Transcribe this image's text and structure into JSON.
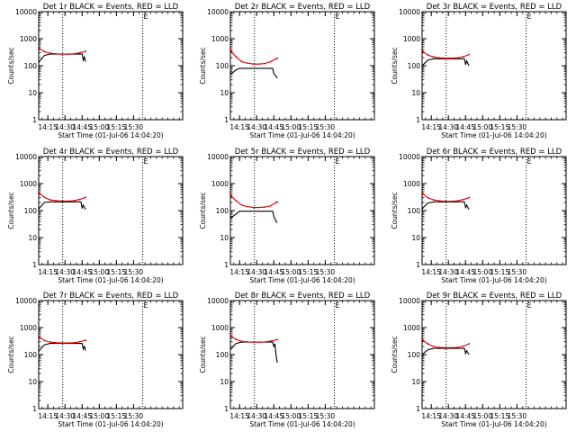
{
  "page_title": "",
  "chart_data": [
    {
      "type": "line",
      "title": "Det 1r BLACK = Events, RED = LLD",
      "xlabel": "Start Time (01-Jul-06 14:04:20)",
      "ylabel": "Counts/sec",
      "yscale": "log",
      "ylim": [
        1,
        10000
      ],
      "y_ticks": [
        "1",
        "10",
        "100",
        "1000",
        "10000"
      ],
      "x_ticks": [
        "14:15",
        "14:30",
        "14:45",
        "15:00",
        "15:15",
        "15:30"
      ],
      "xlim_minutes": [
        14.07,
        15.73
      ],
      "vlines_minutes": [
        14.28,
        15.38
      ],
      "marker_label": "E",
      "marker_minute": 15.38,
      "series": [
        {
          "color": "#000000",
          "x": [
            14.05,
            14.08,
            14.12,
            14.17,
            14.22,
            14.27,
            14.33,
            14.38,
            14.42,
            14.45,
            14.46,
            14.47,
            14.48
          ],
          "y": [
            130,
            150,
            240,
            270,
            270,
            270,
            270,
            270,
            270,
            270,
            160,
            210,
            140
          ]
        },
        {
          "color": "#dd0000",
          "x": [
            14.05,
            14.08,
            14.12,
            14.17,
            14.22,
            14.27,
            14.33,
            14.38,
            14.43,
            14.48
          ],
          "y": [
            480,
            420,
            330,
            290,
            275,
            270,
            270,
            275,
            300,
            340
          ]
        }
      ]
    },
    {
      "type": "line",
      "title": "Det 2r BLACK = Events, RED = LLD",
      "xlabel": "Start Time (01-Jul-06 14:04:20)",
      "ylabel": "Counts/sec",
      "yscale": "log",
      "ylim": [
        1,
        10000
      ],
      "y_ticks": [
        "1",
        "10",
        "100",
        "1000",
        "10000"
      ],
      "x_ticks": [
        "14:15",
        "14:30",
        "14:45",
        "15:00",
        "15:15",
        "15:30"
      ],
      "xlim_minutes": [
        14.07,
        15.73
      ],
      "vlines_minutes": [
        14.28,
        15.38
      ],
      "marker_label": "E",
      "marker_minute": 15.38,
      "series": [
        {
          "color": "#000000",
          "x": [
            14.05,
            14.08,
            14.12,
            14.15,
            14.2,
            14.25,
            14.3,
            14.35,
            14.4,
            14.44,
            14.45,
            14.46,
            14.47,
            14.48
          ],
          "y": [
            60,
            50,
            70,
            80,
            80,
            80,
            80,
            80,
            80,
            80,
            50,
            45,
            40,
            35
          ]
        },
        {
          "color": "#dd0000",
          "x": [
            14.05,
            14.08,
            14.12,
            14.17,
            14.22,
            14.27,
            14.32,
            14.37,
            14.42,
            14.47,
            14.48
          ],
          "y": [
            450,
            330,
            210,
            140,
            125,
            115,
            115,
            120,
            140,
            180,
            190
          ]
        }
      ]
    },
    {
      "type": "line",
      "title": "Det 3r BLACK = Events, RED = LLD",
      "xlabel": "Start Time (01-Jul-06 14:04:20)",
      "ylabel": "Counts/sec",
      "yscale": "log",
      "ylim": [
        1,
        10000
      ],
      "y_ticks": [
        "1",
        "10",
        "100",
        "1000",
        "10000"
      ],
      "x_ticks": [
        "14:15",
        "14:30",
        "14:45",
        "15:00",
        "15:15",
        "15:30"
      ],
      "xlim_minutes": [
        14.07,
        15.73
      ],
      "vlines_minutes": [
        14.28,
        15.38
      ],
      "marker_label": "E",
      "marker_minute": 15.38,
      "series": [
        {
          "color": "#000000",
          "x": [
            14.05,
            14.08,
            14.12,
            14.17,
            14.22,
            14.27,
            14.33,
            14.38,
            14.42,
            14.44,
            14.45,
            14.46,
            14.48
          ],
          "y": [
            100,
            110,
            160,
            180,
            180,
            180,
            180,
            180,
            180,
            180,
            110,
            150,
            100
          ]
        },
        {
          "color": "#dd0000",
          "x": [
            14.05,
            14.08,
            14.12,
            14.17,
            14.22,
            14.27,
            14.33,
            14.38,
            14.43,
            14.48
          ],
          "y": [
            380,
            330,
            250,
            210,
            195,
            190,
            190,
            195,
            215,
            260
          ]
        }
      ]
    },
    {
      "type": "line",
      "title": "Det 4r BLACK = Events, RED = LLD",
      "xlabel": "Start Time (01-Jul-06 14:04:20)",
      "ylabel": "Counts/sec",
      "yscale": "log",
      "ylim": [
        1,
        10000
      ],
      "y_ticks": [
        "1",
        "10",
        "100",
        "1000",
        "10000"
      ],
      "x_ticks": [
        "14:15",
        "14:30",
        "14:45",
        "15:00",
        "15:15",
        "15:30"
      ],
      "xlim_minutes": [
        14.07,
        15.73
      ],
      "vlines_minutes": [
        14.28,
        15.38
      ],
      "marker_label": "E",
      "marker_minute": 15.38,
      "series": [
        {
          "color": "#000000",
          "x": [
            14.05,
            14.08,
            14.12,
            14.17,
            14.22,
            14.27,
            14.33,
            14.38,
            14.42,
            14.44,
            14.45,
            14.46,
            14.48
          ],
          "y": [
            110,
            130,
            200,
            210,
            210,
            210,
            210,
            210,
            210,
            210,
            120,
            160,
            110
          ]
        },
        {
          "color": "#dd0000",
          "x": [
            14.05,
            14.08,
            14.12,
            14.17,
            14.22,
            14.27,
            14.33,
            14.38,
            14.43,
            14.48
          ],
          "y": [
            480,
            420,
            310,
            250,
            235,
            225,
            225,
            235,
            260,
            310
          ]
        }
      ]
    },
    {
      "type": "line",
      "title": "Det 5r BLACK = Events, RED = LLD",
      "xlabel": "Start Time (01-Jul-06 14:04:20)",
      "ylabel": "Counts/sec",
      "yscale": "log",
      "ylim": [
        1,
        10000
      ],
      "y_ticks": [
        "1",
        "10",
        "100",
        "1000",
        "10000"
      ],
      "x_ticks": [
        "14:15",
        "14:30",
        "14:45",
        "15:00",
        "15:15",
        "15:30"
      ],
      "xlim_minutes": [
        14.07,
        15.73
      ],
      "vlines_minutes": [
        14.28,
        15.38
      ],
      "marker_label": "E",
      "marker_minute": 15.38,
      "series": [
        {
          "color": "#000000",
          "x": [
            14.05,
            14.08,
            14.12,
            14.15,
            14.2,
            14.25,
            14.3,
            14.35,
            14.4,
            14.44,
            14.45,
            14.46,
            14.47,
            14.48
          ],
          "y": [
            65,
            55,
            75,
            95,
            95,
            95,
            95,
            95,
            95,
            95,
            60,
            50,
            40,
            35
          ]
        },
        {
          "color": "#dd0000",
          "x": [
            14.05,
            14.08,
            14.12,
            14.17,
            14.22,
            14.27,
            14.32,
            14.37,
            14.42,
            14.47,
            14.48
          ],
          "y": [
            440,
            340,
            230,
            160,
            140,
            130,
            130,
            135,
            150,
            200,
            210
          ]
        }
      ]
    },
    {
      "type": "line",
      "title": "Det 6r BLACK = Events, RED = LLD",
      "xlabel": "Start Time (01-Jul-06 14:04:20)",
      "ylabel": "Counts/sec",
      "yscale": "log",
      "ylim": [
        1,
        10000
      ],
      "y_ticks": [
        "1",
        "10",
        "100",
        "1000",
        "10000"
      ],
      "x_ticks": [
        "14:15",
        "14:30",
        "14:45",
        "15:00",
        "15:15",
        "15:30"
      ],
      "xlim_minutes": [
        14.07,
        15.73
      ],
      "vlines_minutes": [
        14.28,
        15.38
      ],
      "marker_label": "E",
      "marker_minute": 15.38,
      "series": [
        {
          "color": "#000000",
          "x": [
            14.05,
            14.08,
            14.12,
            14.17,
            14.22,
            14.27,
            14.33,
            14.38,
            14.42,
            14.44,
            14.45,
            14.46,
            14.48
          ],
          "y": [
            110,
            130,
            190,
            210,
            210,
            210,
            210,
            210,
            210,
            210,
            130,
            160,
            110
          ]
        },
        {
          "color": "#dd0000",
          "x": [
            14.05,
            14.08,
            14.12,
            14.17,
            14.22,
            14.27,
            14.33,
            14.38,
            14.43,
            14.48
          ],
          "y": [
            470,
            410,
            300,
            250,
            230,
            220,
            220,
            230,
            255,
            300
          ]
        }
      ]
    },
    {
      "type": "line",
      "title": "Det 7r BLACK = Events, RED = LLD",
      "xlabel": "Start Time (01-Jul-06 14:04:20)",
      "ylabel": "Counts/sec",
      "yscale": "log",
      "ylim": [
        1,
        10000
      ],
      "y_ticks": [
        "1",
        "10",
        "100",
        "1000",
        "10000"
      ],
      "x_ticks": [
        "14:15",
        "14:30",
        "14:45",
        "15:00",
        "15:15",
        "15:30"
      ],
      "xlim_minutes": [
        14.07,
        15.73
      ],
      "vlines_minutes": [
        14.28,
        15.38
      ],
      "marker_label": "E",
      "marker_minute": 15.38,
      "series": [
        {
          "color": "#000000",
          "x": [
            14.05,
            14.08,
            14.12,
            14.17,
            14.22,
            14.27,
            14.33,
            14.38,
            14.42,
            14.45,
            14.46,
            14.47,
            14.48
          ],
          "y": [
            130,
            150,
            230,
            260,
            260,
            260,
            260,
            260,
            260,
            260,
            160,
            200,
            140
          ]
        },
        {
          "color": "#dd0000",
          "x": [
            14.05,
            14.08,
            14.12,
            14.17,
            14.22,
            14.27,
            14.33,
            14.38,
            14.43,
            14.48
          ],
          "y": [
            500,
            430,
            330,
            290,
            275,
            270,
            270,
            275,
            300,
            340
          ]
        }
      ]
    },
    {
      "type": "line",
      "title": "Det 8r BLACK = Events, RED = LLD",
      "xlabel": "Start Time (01-Jul-06 14:04:20)",
      "ylabel": "Counts/sec",
      "yscale": "log",
      "ylim": [
        1,
        10000
      ],
      "y_ticks": [
        "1",
        "10",
        "100",
        "1000",
        "10000"
      ],
      "x_ticks": [
        "14:15",
        "14:30",
        "14:45",
        "15:00",
        "15:15",
        "15:30"
      ],
      "xlim_minutes": [
        14.07,
        15.73
      ],
      "vlines_minutes": [
        14.28,
        15.38
      ],
      "marker_label": "E",
      "marker_minute": 15.38,
      "series": [
        {
          "color": "#000000",
          "x": [
            14.05,
            14.08,
            14.12,
            14.17,
            14.22,
            14.27,
            14.33,
            14.38,
            14.42,
            14.44,
            14.45,
            14.46,
            14.47,
            14.48
          ],
          "y": [
            150,
            170,
            260,
            290,
            290,
            290,
            290,
            290,
            290,
            290,
            200,
            250,
            90,
            50
          ]
        },
        {
          "color": "#dd0000",
          "x": [
            14.05,
            14.08,
            14.12,
            14.17,
            14.22,
            14.27,
            14.33,
            14.38,
            14.43,
            14.48
          ],
          "y": [
            560,
            470,
            360,
            310,
            295,
            290,
            290,
            295,
            320,
            360
          ]
        }
      ]
    },
    {
      "type": "line",
      "title": "Det 9r BLACK = Events, RED = LLD",
      "xlabel": "Start Time (01-Jul-06 14:04:20)",
      "ylabel": "Counts/sec",
      "yscale": "log",
      "ylim": [
        1,
        10000
      ],
      "y_ticks": [
        "1",
        "10",
        "100",
        "1000",
        "10000"
      ],
      "x_ticks": [
        "14:15",
        "14:30",
        "14:45",
        "15:00",
        "15:15",
        "15:30"
      ],
      "xlim_minutes": [
        14.07,
        15.73
      ],
      "vlines_minutes": [
        14.28,
        15.38
      ],
      "marker_label": "E",
      "marker_minute": 15.38,
      "series": [
        {
          "color": "#000000",
          "x": [
            14.05,
            14.08,
            14.12,
            14.17,
            14.22,
            14.27,
            14.33,
            14.38,
            14.42,
            14.44,
            14.45,
            14.46,
            14.48
          ],
          "y": [
            90,
            110,
            150,
            170,
            170,
            170,
            170,
            170,
            170,
            170,
            110,
            140,
            100
          ]
        },
        {
          "color": "#dd0000",
          "x": [
            14.05,
            14.08,
            14.12,
            14.17,
            14.22,
            14.27,
            14.33,
            14.38,
            14.43,
            14.48
          ],
          "y": [
            380,
            330,
            250,
            200,
            185,
            180,
            180,
            185,
            205,
            250
          ]
        }
      ]
    }
  ]
}
